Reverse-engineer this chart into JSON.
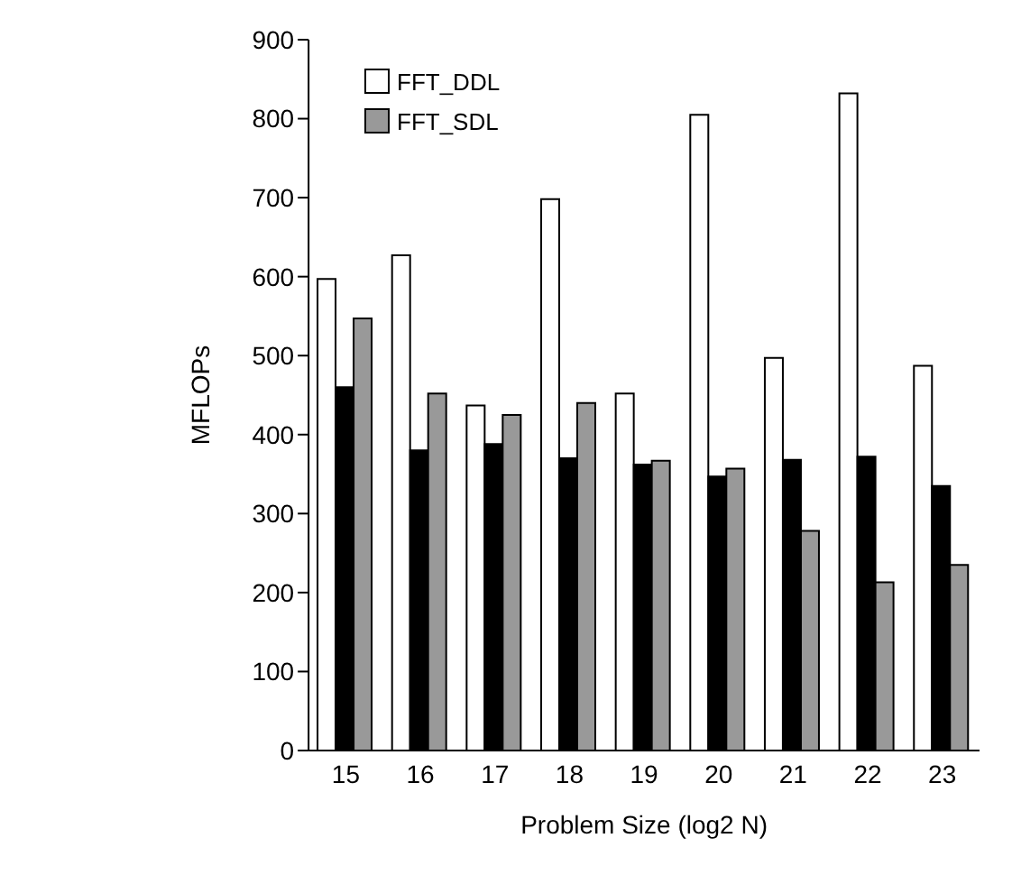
{
  "chart_data": {
    "type": "bar",
    "xlabel": "Problem Size (log2 N)",
    "ylabel": "MFLOPs",
    "categories": [
      "15",
      "16",
      "17",
      "18",
      "19",
      "20",
      "21",
      "22",
      "23"
    ],
    "series": [
      {
        "name": "FFT_DDL",
        "color": "#ffffff",
        "values": [
          597,
          627,
          437,
          698,
          452,
          805,
          497,
          832,
          487
        ]
      },
      {
        "color": "#000000",
        "values": [
          460,
          380,
          388,
          370,
          362,
          347,
          368,
          372,
          335
        ]
      },
      {
        "name": "FFT_SDL",
        "color": "#999999",
        "values": [
          547,
          452,
          425,
          440,
          367,
          357,
          278,
          213,
          235
        ]
      }
    ],
    "ylim": [
      0,
      900
    ],
    "yticks": [
      0,
      100,
      200,
      300,
      400,
      500,
      600,
      700,
      800,
      900
    ],
    "grid": false,
    "legend": "top left"
  }
}
